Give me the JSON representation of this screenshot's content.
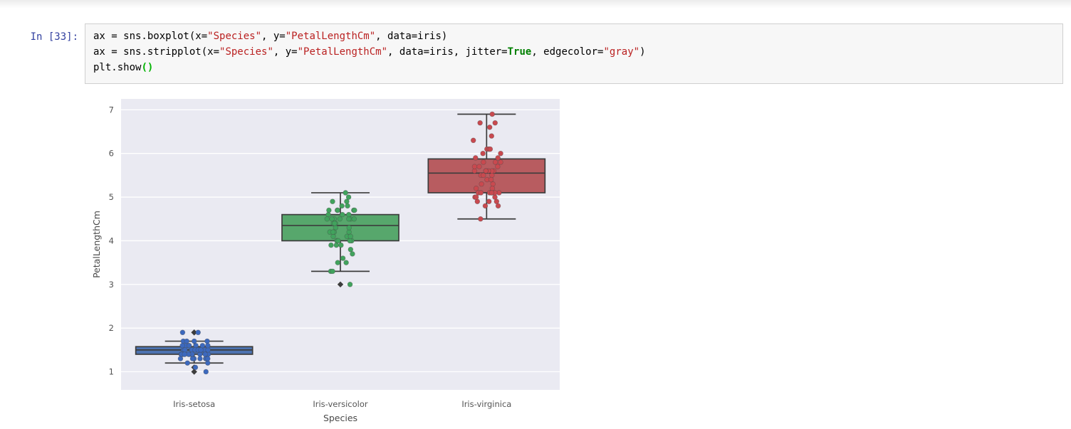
{
  "notebook": {
    "prompt": "In [33]:",
    "code_lines": [
      [
        {
          "t": "ax = sns.boxplot(x=",
          "c": "p"
        },
        {
          "t": "\"Species\"",
          "c": "s"
        },
        {
          "t": ", y=",
          "c": "p"
        },
        {
          "t": "\"PetalLengthCm\"",
          "c": "s"
        },
        {
          "t": ", data=iris)",
          "c": "p"
        }
      ],
      [
        {
          "t": "ax = sns.stripplot(x=",
          "c": "p"
        },
        {
          "t": "\"Species\"",
          "c": "s"
        },
        {
          "t": ", y=",
          "c": "p"
        },
        {
          "t": "\"PetalLengthCm\"",
          "c": "s"
        },
        {
          "t": ", data=iris, jitter=",
          "c": "p"
        },
        {
          "t": "True",
          "c": "k"
        },
        {
          "t": ", edgecolor=",
          "c": "p"
        },
        {
          "t": "\"gray\"",
          "c": "s"
        },
        {
          "t": ")",
          "c": "p"
        }
      ],
      [
        {
          "t": "plt.show",
          "c": "p"
        },
        {
          "t": "()",
          "c": "m"
        }
      ]
    ]
  },
  "colors": {
    "prompt_text": "#303F9F",
    "code_string": "#BA2121",
    "code_keyword": "#008000",
    "code_matched_bracket": "#00B400",
    "cell_background": "#F7F7F7",
    "cell_border": "#CFCFCF",
    "axes_background": "#EAEAF2",
    "gridline": "#FFFFFF",
    "box_edge": "#3C3C3C",
    "tick_label": "#555555",
    "axis_label": "#4A4A4A"
  },
  "chart_data": {
    "type": "boxplot+strip",
    "title": "",
    "xlabel": "Species",
    "ylabel": "PetalLengthCm",
    "categories": [
      "Iris-setosa",
      "Iris-versicolor",
      "Iris-virginica"
    ],
    "yticks": [
      1,
      2,
      3,
      4,
      5,
      6,
      7
    ],
    "ylim": [
      0.585,
      7.25
    ],
    "grid": true,
    "legend": "none",
    "series": [
      {
        "name": "Iris-setosa",
        "box_color": "#4C72B0",
        "point_color": "#3C69BE",
        "box": {
          "whislo": 1.2,
          "q1": 1.4,
          "med": 1.5,
          "q3": 1.575,
          "whishi": 1.7,
          "fliers": [
            1.0,
            1.1,
            1.9,
            1.9
          ]
        },
        "points": [
          1.4,
          1.4,
          1.3,
          1.5,
          1.4,
          1.7,
          1.4,
          1.5,
          1.4,
          1.5,
          1.5,
          1.6,
          1.4,
          1.1,
          1.2,
          1.5,
          1.3,
          1.4,
          1.7,
          1.5,
          1.7,
          1.5,
          1.0,
          1.7,
          1.9,
          1.6,
          1.6,
          1.5,
          1.4,
          1.6,
          1.6,
          1.5,
          1.5,
          1.4,
          1.5,
          1.2,
          1.3,
          1.4,
          1.3,
          1.5,
          1.3,
          1.3,
          1.3,
          1.6,
          1.9,
          1.4,
          1.6,
          1.4,
          1.5,
          1.4
        ]
      },
      {
        "name": "Iris-versicolor",
        "box_color": "#57A76C",
        "point_color": "#41A35D",
        "box": {
          "whislo": 3.3,
          "q1": 4.0,
          "med": 4.35,
          "q3": 4.6,
          "whishi": 5.1,
          "fliers": [
            3.0
          ]
        },
        "points": [
          4.7,
          4.5,
          4.9,
          4.0,
          4.6,
          4.5,
          4.7,
          3.3,
          4.6,
          3.9,
          3.5,
          4.2,
          4.0,
          4.7,
          3.6,
          4.4,
          4.5,
          4.1,
          4.5,
          3.9,
          4.8,
          4.0,
          4.9,
          4.7,
          4.3,
          4.4,
          4.8,
          5.0,
          4.5,
          3.5,
          3.8,
          3.7,
          3.9,
          5.1,
          4.5,
          4.5,
          4.7,
          4.4,
          4.1,
          4.0,
          4.4,
          4.6,
          4.0,
          3.3,
          4.2,
          4.2,
          4.2,
          4.3,
          3.0,
          4.1
        ]
      },
      {
        "name": "Iris-virginica",
        "box_color": "#B85C60",
        "point_color": "#C9494F",
        "box": {
          "whislo": 4.5,
          "q1": 5.1,
          "med": 5.55,
          "q3": 5.875,
          "whishi": 6.9,
          "fliers": []
        },
        "points": [
          6.0,
          5.1,
          5.9,
          5.6,
          5.8,
          6.6,
          4.5,
          6.3,
          5.8,
          6.1,
          5.1,
          5.3,
          5.5,
          5.0,
          5.1,
          5.3,
          5.5,
          6.7,
          6.9,
          5.0,
          5.7,
          4.9,
          6.7,
          4.9,
          5.7,
          6.0,
          4.8,
          4.9,
          5.6,
          5.8,
          6.1,
          6.4,
          5.6,
          5.1,
          5.6,
          6.1,
          5.6,
          5.5,
          4.8,
          5.4,
          5.6,
          5.1,
          5.1,
          5.9,
          5.7,
          5.2,
          5.0,
          5.2,
          5.4,
          5.1
        ]
      }
    ]
  }
}
